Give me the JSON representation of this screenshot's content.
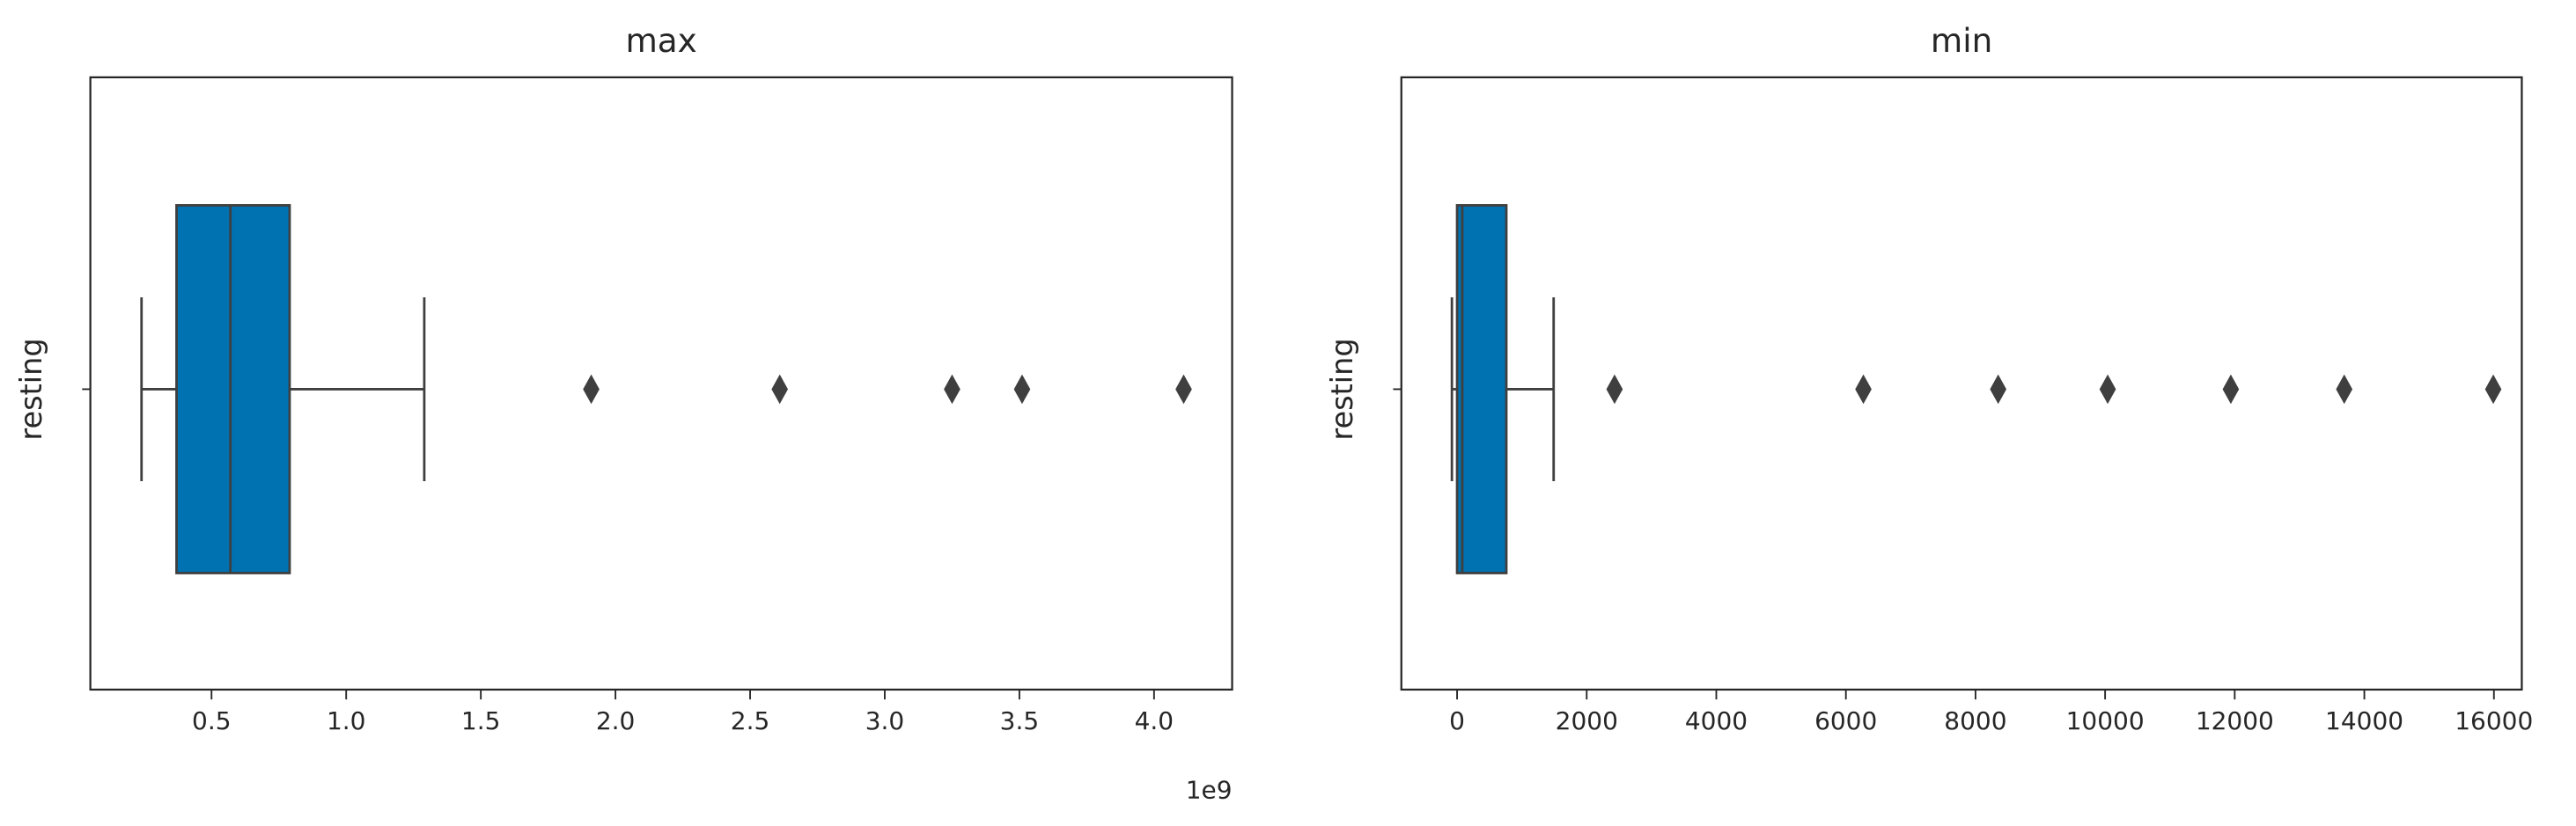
{
  "chart_data": [
    {
      "type": "box",
      "title": "max",
      "ylabel": "resting",
      "color": "#0072b2",
      "offset_text": "1e9",
      "xlim": [
        0.05,
        4.29
      ],
      "xticks": [
        0.5,
        {
          "value": 1,
          "label": "1.0"
        },
        1.5,
        {
          "value": 2,
          "label": "2.0"
        },
        2.5,
        {
          "value": 3,
          "label": "3.0"
        },
        3.5,
        {
          "value": 4,
          "label": "4.0"
        }
      ],
      "box": {
        "whisker_low": 0.24,
        "q1": 0.37,
        "median": 0.57,
        "q3": 0.79,
        "whisker_high": 1.29,
        "outliers": [
          1.91,
          2.61,
          3.25,
          3.51,
          4.11
        ]
      }
    },
    {
      "type": "box",
      "title": "min",
      "ylabel": "resting",
      "color": "#0072b2",
      "xlim": [
        -860,
        16430
      ],
      "xticks": [
        0,
        2000,
        4000,
        6000,
        8000,
        10000,
        12000,
        14000,
        16000
      ],
      "box": {
        "whisker_low": -80,
        "q1": 0,
        "median": 80,
        "q3": 760,
        "whisker_high": 1490,
        "outliers": [
          2430,
          6270,
          8350,
          10040,
          11940,
          13690,
          15990
        ]
      }
    }
  ]
}
